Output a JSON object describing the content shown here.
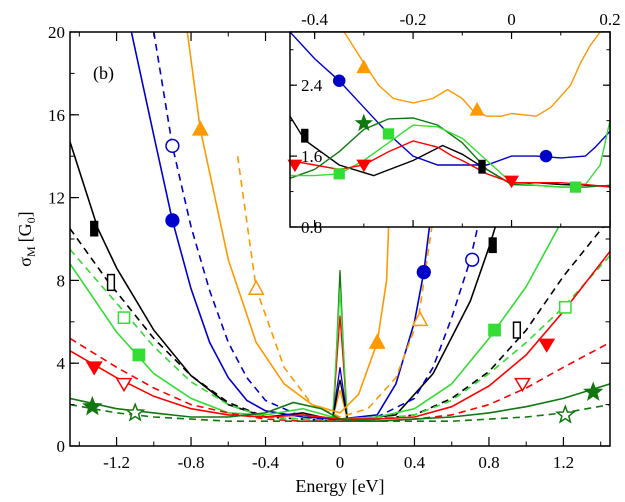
{
  "chart_data": [
    {
      "id": "main",
      "type": "line",
      "panel_label": "(b)",
      "xlabel": "Energy [eV]",
      "ylabel_main": "σ",
      "ylabel_sub": "M",
      "ylabel_unit": "[G",
      "ylabel_unit_sub": "0",
      "ylabel_unit_close": "]",
      "xlim": [
        -1.45,
        1.45
      ],
      "ylim": [
        0,
        20
      ],
      "xticks": [
        -1.2,
        -0.8,
        -0.4,
        0,
        0.4,
        0.8,
        1.2
      ],
      "xtick_labels": [
        "-1.2",
        "-0.8",
        "-0.4",
        "0",
        "0.4",
        "0.8",
        "1.2"
      ],
      "yticks": [
        0,
        4,
        8,
        12,
        16,
        20
      ],
      "ytick_labels": [
        "0",
        "4",
        "8",
        "12",
        "16",
        "20"
      ],
      "series": [
        {
          "color": "#000000",
          "dash": false,
          "marker": "rect",
          "fill": true,
          "x": [
            -1.45,
            -1.3,
            -1.2,
            -1.0,
            -0.8,
            -0.6,
            -0.4,
            -0.2,
            -0.05,
            0.1,
            0.3,
            0.5,
            0.7,
            0.8,
            0.9,
            1.0
          ],
          "y": [
            14.7,
            10.5,
            8.6,
            5.6,
            3.4,
            2.0,
            1.4,
            1.6,
            1.3,
            1.3,
            1.5,
            3.5,
            7.0,
            9.6,
            12.5,
            16.0
          ],
          "markers_x": [
            -1.32,
            0.82
          ],
          "markers_y": [
            10.5,
            9.7
          ]
        },
        {
          "color": "#000000",
          "dash": true,
          "marker": "rect",
          "fill": false,
          "x": [
            -1.45,
            -1.25,
            -1.0,
            -0.8,
            -0.6,
            -0.4,
            -0.2,
            0.0,
            0.2,
            0.4,
            0.6,
            0.8,
            1.0,
            1.2,
            1.45
          ],
          "y": [
            10.5,
            8.0,
            5.2,
            3.4,
            2.1,
            1.4,
            1.3,
            1.2,
            1.3,
            1.5,
            2.3,
            3.6,
            5.6,
            8.2,
            11.0
          ],
          "markers_x": [
            -1.23,
            0.95
          ],
          "markers_y": [
            7.9,
            5.6
          ]
        },
        {
          "color": "#0000cc",
          "dash": false,
          "marker": "circle",
          "fill": true,
          "x": [
            -1.12,
            -1.0,
            -0.9,
            -0.8,
            -0.7,
            -0.6,
            -0.5,
            -0.4,
            -0.2,
            0.0,
            0.2,
            0.3,
            0.4,
            0.45,
            0.5,
            0.55
          ],
          "y": [
            20.0,
            15.0,
            10.9,
            7.6,
            5.0,
            3.3,
            2.2,
            1.7,
            1.4,
            1.3,
            1.5,
            3.0,
            6.0,
            8.4,
            12.0,
            20.0
          ],
          "markers_x": [
            -0.9,
            0.45
          ],
          "markers_y": [
            10.9,
            8.4
          ]
        },
        {
          "color": "#0000cc",
          "dash": true,
          "marker": "circle",
          "fill": false,
          "x": [
            -1.0,
            -0.9,
            -0.8,
            -0.7,
            -0.6,
            -0.5,
            -0.4,
            -0.2,
            0.0,
            0.2,
            0.4,
            0.5,
            0.6,
            0.7,
            0.8
          ],
          "y": [
            20.0,
            14.5,
            10.6,
            7.5,
            5.0,
            3.3,
            2.2,
            1.4,
            1.2,
            1.4,
            2.3,
            3.8,
            6.2,
            9.0,
            13.0
          ],
          "markers_x": [
            -0.9,
            0.71
          ],
          "markers_y": [
            14.5,
            9.0
          ]
        },
        {
          "color": "#ff9900",
          "dash": false,
          "marker": "triangle",
          "fill": true,
          "x": [
            -0.82,
            -0.75,
            -0.6,
            -0.45,
            -0.3,
            -0.15,
            0.0,
            0.1,
            0.2,
            0.25,
            0.3
          ],
          "y": [
            20.0,
            15.3,
            9.0,
            5.0,
            3.0,
            2.0,
            1.6,
            2.5,
            5.0,
            8.0,
            20.0
          ],
          "markers_x": [
            -0.75,
            0.2
          ],
          "markers_y": [
            15.3,
            5.0
          ]
        },
        {
          "color": "#ff9900",
          "dash": true,
          "marker": "triangle",
          "fill": false,
          "x": [
            -0.55,
            -0.45,
            -0.3,
            -0.15,
            0.0,
            0.15,
            0.3,
            0.42,
            0.5,
            0.58
          ],
          "y": [
            14.0,
            7.6,
            3.8,
            2.0,
            1.4,
            1.8,
            3.3,
            6.1,
            11.0,
            20.0
          ],
          "markers_x": [
            -0.45,
            0.43
          ],
          "markers_y": [
            7.6,
            6.1
          ]
        },
        {
          "color": "#33dd33",
          "dash": false,
          "marker": "square",
          "fill": true,
          "x": [
            -1.45,
            -1.2,
            -1.0,
            -0.8,
            -0.6,
            -0.4,
            -0.2,
            0.0,
            0.2,
            0.4,
            0.6,
            0.8,
            1.0,
            1.2,
            1.45
          ],
          "y": [
            8.8,
            5.5,
            3.5,
            2.3,
            1.6,
            1.5,
            1.8,
            1.3,
            1.4,
            1.8,
            3.0,
            5.2,
            7.7,
            11.0,
            16.0
          ],
          "markers_x": [
            -1.08,
            0.83
          ],
          "markers_y": [
            4.4,
            5.6
          ]
        },
        {
          "color": "#33dd33",
          "dash": true,
          "marker": "square",
          "fill": false,
          "x": [
            -1.45,
            -1.2,
            -1.0,
            -0.8,
            -0.6,
            -0.4,
            -0.2,
            0.0,
            0.2,
            0.4,
            0.6,
            0.8,
            1.0,
            1.2,
            1.45
          ],
          "y": [
            9.5,
            6.9,
            4.8,
            3.1,
            2.0,
            1.4,
            1.3,
            1.2,
            1.3,
            1.5,
            2.2,
            3.5,
            5.0,
            6.7,
            9.2
          ],
          "markers_x": [
            -1.16,
            1.21
          ],
          "markers_y": [
            6.2,
            6.7
          ]
        },
        {
          "color": "#ff0000",
          "dash": false,
          "marker": "triangle-down",
          "fill": true,
          "x": [
            -1.45,
            -1.2,
            -1.0,
            -0.8,
            -0.6,
            -0.4,
            -0.2,
            0.0,
            0.2,
            0.4,
            0.6,
            0.8,
            1.0,
            1.2,
            1.45
          ],
          "y": [
            4.6,
            3.3,
            2.4,
            1.8,
            1.5,
            1.4,
            1.5,
            1.3,
            1.3,
            1.4,
            1.9,
            2.9,
            4.4,
            6.5,
            9.4
          ],
          "markers_x": [
            -1.32,
            1.11
          ],
          "markers_y": [
            3.8,
            4.9
          ]
        },
        {
          "color": "#ff0000",
          "dash": true,
          "marker": "triangle-down",
          "fill": false,
          "x": [
            -1.45,
            -1.2,
            -1.0,
            -0.8,
            -0.6,
            -0.4,
            -0.2,
            0.0,
            0.2,
            0.4,
            0.6,
            0.8,
            1.0,
            1.2,
            1.45
          ],
          "y": [
            5.2,
            3.8,
            2.8,
            2.0,
            1.6,
            1.3,
            1.2,
            1.2,
            1.2,
            1.3,
            1.5,
            2.0,
            2.8,
            3.8,
            5.0
          ],
          "markers_x": [
            -1.16,
            0.98
          ],
          "markers_y": [
            3.0,
            3.0
          ]
        },
        {
          "color": "#117711",
          "dash": false,
          "marker": "star",
          "fill": true,
          "x": [
            -1.45,
            -1.2,
            -1.0,
            -0.8,
            -0.6,
            -0.4,
            -0.25,
            -0.1,
            0.0,
            0.2,
            0.4,
            0.6,
            0.8,
            1.0,
            1.2,
            1.45
          ],
          "y": [
            2.3,
            1.8,
            1.6,
            1.4,
            1.4,
            1.6,
            2.1,
            1.8,
            1.3,
            1.2,
            1.3,
            1.4,
            1.6,
            1.9,
            2.3,
            3.0
          ],
          "markers_x": [
            -1.33,
            1.36
          ],
          "markers_y": [
            1.9,
            2.6
          ]
        },
        {
          "color": "#117711",
          "dash": true,
          "marker": "star",
          "fill": false,
          "x": [
            -1.45,
            -1.2,
            -1.0,
            -0.8,
            -0.6,
            -0.4,
            -0.2,
            0.0,
            0.2,
            0.4,
            0.6,
            0.8,
            1.0,
            1.2,
            1.45
          ],
          "y": [
            2.0,
            1.6,
            1.4,
            1.3,
            1.2,
            1.2,
            1.2,
            1.2,
            1.2,
            1.2,
            1.2,
            1.3,
            1.4,
            1.6,
            2.0
          ],
          "markers_x": [
            -1.1,
            1.21
          ],
          "markers_y": [
            1.6,
            1.5
          ]
        }
      ],
      "peaks": [
        {
          "color": "#117711",
          "x": [
            -0.035,
            0,
            0.035
          ],
          "y": [
            1.3,
            8.5,
            1.3
          ]
        },
        {
          "color": "#ff0000",
          "x": [
            -0.04,
            0,
            0.04
          ],
          "y": [
            1.3,
            6.3,
            1.3
          ]
        },
        {
          "color": "#33dd33",
          "x": [
            -0.04,
            0,
            0.04
          ],
          "y": [
            1.3,
            7.6,
            1.3
          ]
        },
        {
          "color": "#0000cc",
          "x": [
            -0.04,
            0,
            0.04
          ],
          "y": [
            1.3,
            3.8,
            1.3
          ]
        },
        {
          "color": "#ff9900",
          "x": [
            -0.04,
            0,
            0.04
          ],
          "y": [
            1.3,
            2.7,
            1.3
          ]
        },
        {
          "color": "#000000",
          "x": [
            -0.04,
            0,
            0.04
          ],
          "y": [
            1.3,
            3.2,
            1.3
          ]
        }
      ]
    },
    {
      "id": "inset",
      "type": "line",
      "xlim": [
        -0.45,
        0.2
      ],
      "ylim": [
        0.8,
        3.0
      ],
      "xticks": [
        -0.4,
        -0.2,
        0,
        0.2
      ],
      "xtick_labels": [
        "-0.4",
        "-0.2",
        "0",
        "0.2"
      ],
      "yticks": [
        0.8,
        1.6,
        2.4
      ],
      "ytick_labels": [
        "0.8",
        "1.6",
        "2.4"
      ],
      "series": [
        {
          "color": "#000000",
          "marker": "rect",
          "fill": true,
          "x": [
            -0.45,
            -0.42,
            -0.35,
            -0.28,
            -0.2,
            -0.14,
            -0.1,
            -0.06,
            -0.02,
            0.0,
            0.05,
            0.1,
            0.15,
            0.2
          ],
          "y": [
            2.05,
            1.78,
            1.5,
            1.38,
            1.55,
            1.72,
            1.62,
            1.48,
            1.35,
            1.28,
            1.3,
            1.28,
            1.27,
            1.26
          ],
          "markers_x": [
            -0.42,
            -0.06
          ],
          "markers_y": [
            1.83,
            1.48
          ]
        },
        {
          "color": "#0000cc",
          "marker": "circle",
          "fill": true,
          "x": [
            -0.45,
            -0.4,
            -0.35,
            -0.3,
            -0.25,
            -0.2,
            -0.15,
            -0.1,
            -0.05,
            0.0,
            0.05,
            0.1,
            0.15,
            0.17,
            0.2
          ],
          "y": [
            3.0,
            2.7,
            2.45,
            2.15,
            1.85,
            1.6,
            1.5,
            1.5,
            1.5,
            1.6,
            1.6,
            1.58,
            1.6,
            1.7,
            1.88
          ],
          "markers_x": [
            -0.35,
            0.07
          ],
          "markers_y": [
            2.45,
            1.6
          ]
        },
        {
          "color": "#ff9900",
          "marker": "triangle",
          "fill": true,
          "x": [
            -0.34,
            -0.3,
            -0.27,
            -0.24,
            -0.2,
            -0.16,
            -0.13,
            -0.1,
            -0.08,
            -0.05,
            -0.02,
            0.0,
            0.05,
            0.08,
            0.12,
            0.14,
            0.16,
            0.18
          ],
          "y": [
            3.0,
            2.65,
            2.4,
            2.25,
            2.2,
            2.25,
            2.35,
            2.25,
            2.12,
            2.05,
            2.05,
            2.08,
            2.05,
            2.15,
            2.4,
            2.65,
            2.85,
            3.0
          ],
          "markers_x": [
            -0.3,
            -0.07
          ],
          "markers_y": [
            2.6,
            2.12
          ]
        },
        {
          "color": "#117711",
          "marker": "star",
          "fill": true,
          "x": [
            -0.45,
            -0.4,
            -0.35,
            -0.3,
            -0.25,
            -0.2,
            -0.15,
            -0.1,
            -0.05,
            0.0,
            0.05,
            0.1,
            0.15,
            0.2
          ],
          "y": [
            1.35,
            1.45,
            1.65,
            1.9,
            2.02,
            2.03,
            1.95,
            1.75,
            1.45,
            1.28,
            1.27,
            1.25,
            1.25,
            1.27
          ],
          "markers_x": [
            -0.3
          ],
          "markers_y": [
            1.97
          ]
        },
        {
          "color": "#33dd33",
          "marker": "square",
          "fill": true,
          "x": [
            -0.45,
            -0.4,
            -0.35,
            -0.3,
            -0.25,
            -0.2,
            -0.15,
            -0.1,
            -0.05,
            0.0,
            0.05,
            0.1,
            0.12,
            0.15,
            0.18,
            0.2
          ],
          "y": [
            1.38,
            1.38,
            1.4,
            1.55,
            1.75,
            1.95,
            1.93,
            1.8,
            1.55,
            1.3,
            1.27,
            1.25,
            1.25,
            1.28,
            1.5,
            2.0
          ],
          "markers_x": [
            -0.35,
            -0.25,
            0.13
          ],
          "markers_y": [
            1.4,
            1.85,
            1.25
          ]
        },
        {
          "color": "#ff0000",
          "marker": "triangle-down",
          "fill": true,
          "x": [
            -0.45,
            -0.4,
            -0.35,
            -0.3,
            -0.25,
            -0.2,
            -0.15,
            -0.12,
            -0.1,
            -0.05,
            0.0,
            0.05,
            0.1,
            0.15,
            0.2
          ],
          "y": [
            1.55,
            1.5,
            1.45,
            1.5,
            1.65,
            1.77,
            1.7,
            1.6,
            1.55,
            1.4,
            1.3,
            1.3,
            1.3,
            1.28,
            1.25
          ],
          "markers_x": [
            -0.44,
            -0.3,
            0.0
          ],
          "markers_y": [
            1.5,
            1.5,
            1.32
          ]
        }
      ]
    }
  ]
}
